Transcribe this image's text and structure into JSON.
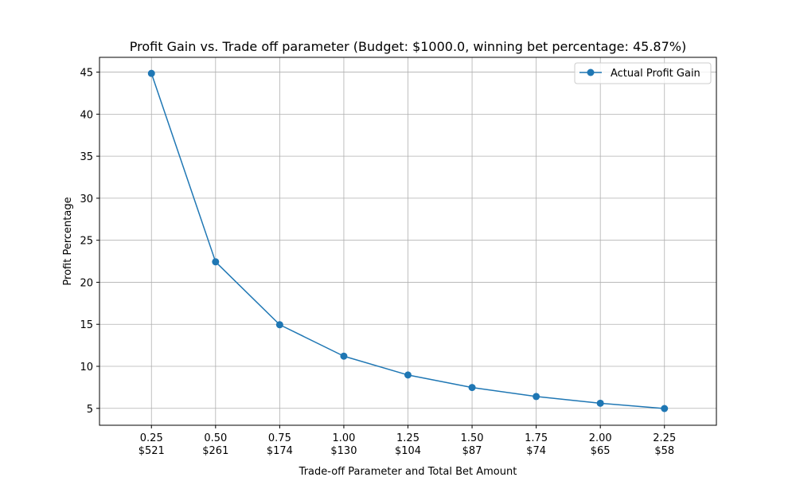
{
  "chart_data": {
    "type": "line",
    "title": "Profit Gain vs. Trade off parameter (Budget: $1000.0, winning bet percentage: 45.87%)",
    "xlabel": "Trade-off Parameter and Total Bet Amount",
    "ylabel": "Profit Percentage",
    "x": [
      0.25,
      0.5,
      0.75,
      1.0,
      1.25,
      1.5,
      1.75,
      2.0,
      2.25
    ],
    "x_tick_labels": [
      "0.25",
      "0.50",
      "0.75",
      "1.00",
      "1.25",
      "1.50",
      "1.75",
      "2.00",
      "2.25"
    ],
    "x_tick_sublabels": [
      "$521",
      "$261",
      "$174",
      "$130",
      "$104",
      "$87",
      "$74",
      "$65",
      "$58"
    ],
    "xlim": [
      0.0475,
      2.4525
    ],
    "ylim": [
      2.99,
      46.76
    ],
    "y_ticks": [
      5,
      10,
      15,
      20,
      25,
      30,
      35,
      40,
      45
    ],
    "series": [
      {
        "name": "Actual Profit Gain",
        "values": [
          44.85,
          22.43,
          14.95,
          11.21,
          8.97,
          7.48,
          6.41,
          5.61,
          4.98
        ],
        "color": "#1f77b4",
        "marker": "circle"
      }
    ],
    "grid": true,
    "legend_position": "upper-right"
  }
}
